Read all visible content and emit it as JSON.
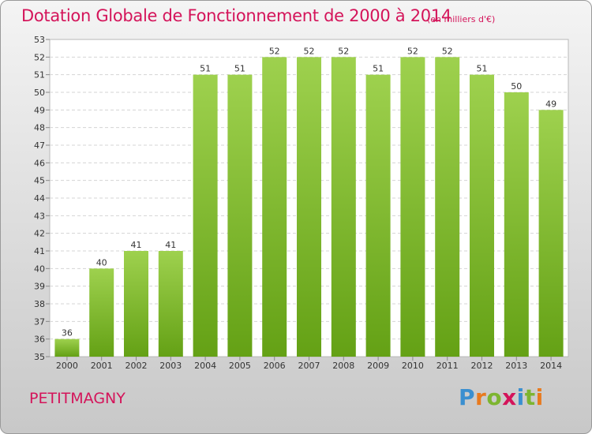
{
  "header": {
    "title": "Dotation Globale de Fonctionnement de 2000 à 2014",
    "unit": "(en milliers d'€)"
  },
  "commune": "PETITMAGNY",
  "logo": {
    "text": "Proxiti",
    "letters": [
      "P",
      "r",
      "o",
      "x",
      "i",
      "t",
      "i"
    ]
  },
  "colors": {
    "accent": "#d4145a",
    "bar_top": "#9ed14e",
    "bar_bottom": "#64a115"
  },
  "chart_data": {
    "type": "bar",
    "title": "Dotation Globale de Fonctionnement de 2000 à 2014",
    "subtitle": "(en milliers d'€)",
    "categories": [
      "2000",
      "2001",
      "2002",
      "2003",
      "2004",
      "2005",
      "2006",
      "2007",
      "2008",
      "2009",
      "2010",
      "2011",
      "2012",
      "2013",
      "2014"
    ],
    "values": [
      36,
      40,
      41,
      41,
      51,
      51,
      52,
      52,
      52,
      51,
      52,
      52,
      51,
      50,
      49
    ],
    "ylim": [
      35,
      53
    ],
    "yticks": [
      35,
      36,
      37,
      38,
      39,
      40,
      41,
      42,
      43,
      44,
      45,
      46,
      47,
      48,
      49,
      50,
      51,
      52,
      53
    ],
    "grid": true,
    "data_labels": true
  }
}
